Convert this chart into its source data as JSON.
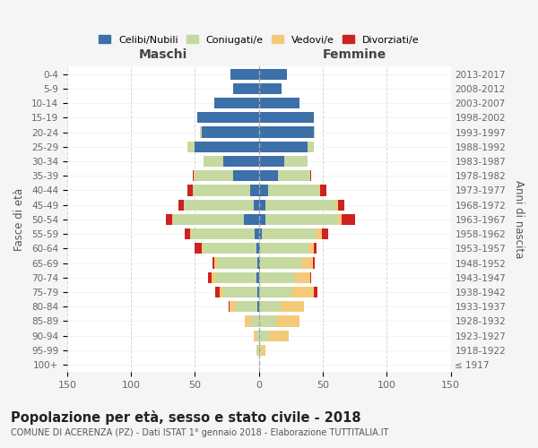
{
  "age_groups": [
    "100+",
    "95-99",
    "90-94",
    "85-89",
    "80-84",
    "75-79",
    "70-74",
    "65-69",
    "60-64",
    "55-59",
    "50-54",
    "45-49",
    "40-44",
    "35-39",
    "30-34",
    "25-29",
    "20-24",
    "15-19",
    "10-14",
    "5-9",
    "0-4"
  ],
  "birth_years": [
    "≤ 1917",
    "1918-1922",
    "1923-1927",
    "1928-1932",
    "1933-1937",
    "1938-1942",
    "1943-1947",
    "1948-1952",
    "1953-1957",
    "1958-1962",
    "1963-1967",
    "1968-1972",
    "1973-1977",
    "1978-1982",
    "1983-1987",
    "1988-1992",
    "1993-1997",
    "1998-2002",
    "2003-2007",
    "2008-2012",
    "2013-2017"
  ],
  "maschi": {
    "celibi": [
      0,
      0,
      0,
      0,
      1,
      1,
      2,
      1,
      2,
      3,
      12,
      4,
      7,
      20,
      28,
      50,
      45,
      48,
      35,
      20,
      22
    ],
    "coniugati": [
      0,
      1,
      2,
      6,
      17,
      27,
      32,
      32,
      42,
      50,
      55,
      55,
      45,
      30,
      15,
      5,
      1,
      0,
      0,
      0,
      0
    ],
    "vedovi": [
      0,
      1,
      2,
      5,
      5,
      3,
      3,
      2,
      1,
      1,
      1,
      0,
      0,
      1,
      0,
      1,
      0,
      0,
      0,
      0,
      0
    ],
    "divorziati": [
      0,
      0,
      0,
      0,
      1,
      3,
      3,
      1,
      5,
      4,
      5,
      4,
      4,
      1,
      0,
      0,
      0,
      0,
      0,
      0,
      0
    ]
  },
  "femmine": {
    "nubili": [
      0,
      0,
      0,
      0,
      0,
      0,
      0,
      1,
      1,
      2,
      5,
      5,
      7,
      15,
      20,
      38,
      43,
      43,
      32,
      18,
      22
    ],
    "coniugate": [
      0,
      2,
      8,
      14,
      17,
      26,
      28,
      33,
      38,
      43,
      57,
      55,
      40,
      25,
      18,
      5,
      1,
      0,
      0,
      0,
      0
    ],
    "vedove": [
      0,
      3,
      15,
      18,
      18,
      17,
      12,
      8,
      4,
      4,
      3,
      2,
      1,
      0,
      0,
      0,
      0,
      0,
      0,
      0,
      0
    ],
    "divorziate": [
      0,
      0,
      0,
      0,
      0,
      3,
      1,
      2,
      2,
      5,
      10,
      5,
      5,
      1,
      0,
      0,
      0,
      0,
      0,
      0,
      0
    ]
  },
  "colors": {
    "celibi": "#3d6fa8",
    "coniugati": "#c5d9a0",
    "vedovi": "#f5c97a",
    "divorziati": "#cc2222"
  },
  "title": "Popolazione per età, sesso e stato civile - 2018",
  "subtitle": "COMUNE DI ACERENZA (PZ) - Dati ISTAT 1° gennaio 2018 - Elaborazione TUTTITALIA.IT",
  "xlabel_maschi": "Maschi",
  "xlabel_femmine": "Femmine",
  "ylabel_left": "Fasce di età",
  "ylabel_right": "Anni di nascita",
  "xlim": 150,
  "background_color": "#f5f5f5",
  "plot_bg_color": "#ffffff"
}
